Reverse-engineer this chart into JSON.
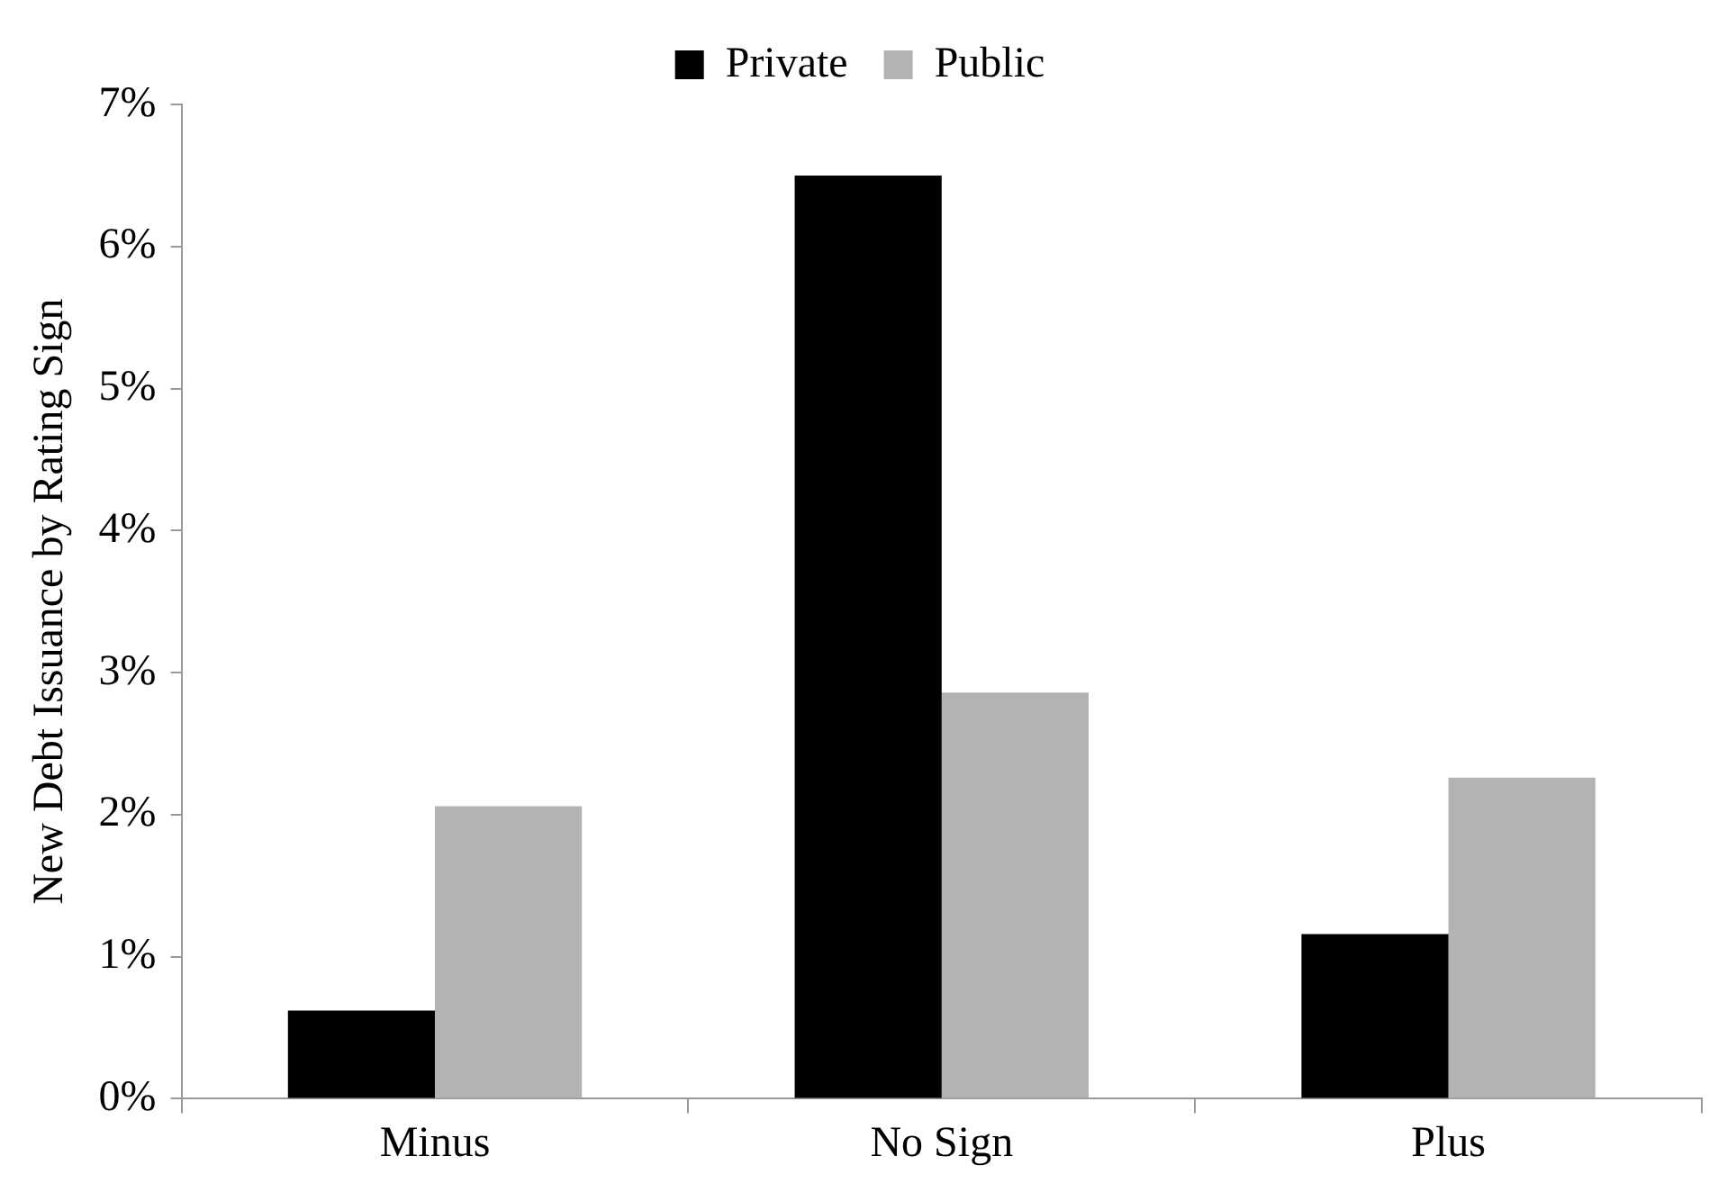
{
  "chart_data": {
    "type": "bar",
    "ylabel": "New Debt Issuance by Rating Sign",
    "categories": [
      "Minus",
      "No Sign",
      "Plus"
    ],
    "series": [
      {
        "name": "Private",
        "color": "#000000",
        "values": [
          0.62,
          6.5,
          1.16
        ]
      },
      {
        "name": "Public",
        "color": "#b3b3b3",
        "values": [
          2.06,
          2.86,
          2.26
        ]
      }
    ],
    "ylim": [
      0,
      7
    ],
    "yticks": [
      {
        "value": 0,
        "label": "0%"
      },
      {
        "value": 1,
        "label": "1%"
      },
      {
        "value": 2,
        "label": "2%"
      },
      {
        "value": 3,
        "label": "3%"
      },
      {
        "value": 4,
        "label": "4%"
      },
      {
        "value": 5,
        "label": "5%"
      },
      {
        "value": 6,
        "label": "6%"
      },
      {
        "value": 7,
        "label": "7%"
      }
    ],
    "grid": false,
    "legend": "top"
  }
}
